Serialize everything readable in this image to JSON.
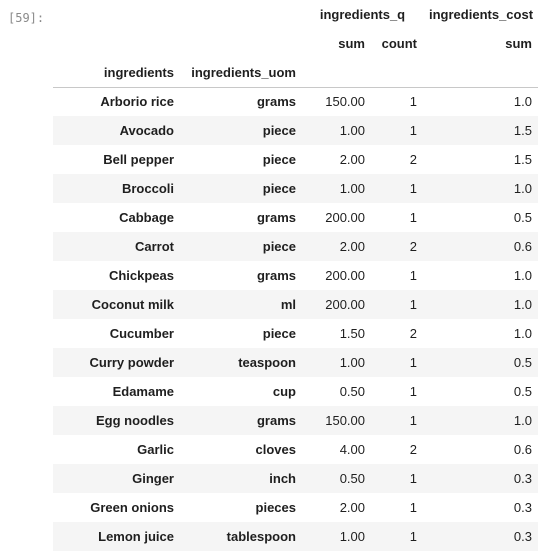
{
  "cell": {
    "prompt": "[59]:"
  },
  "table": {
    "index_names": [
      "ingredients",
      "ingredients_uom"
    ],
    "column_groups": {
      "quantity": "ingredients_q",
      "cost": "ingredients_cost"
    },
    "column_stats": {
      "quantity_sum": "sum",
      "quantity_count": "count",
      "cost_sum": "sum"
    },
    "rows": [
      {
        "ingredient": "Arborio rice",
        "uom": "grams",
        "q_sum": "150.00",
        "q_count": "1",
        "cost_sum": "1.0"
      },
      {
        "ingredient": "Avocado",
        "uom": "piece",
        "q_sum": "1.00",
        "q_count": "1",
        "cost_sum": "1.5"
      },
      {
        "ingredient": "Bell pepper",
        "uom": "piece",
        "q_sum": "2.00",
        "q_count": "2",
        "cost_sum": "1.5"
      },
      {
        "ingredient": "Broccoli",
        "uom": "piece",
        "q_sum": "1.00",
        "q_count": "1",
        "cost_sum": "1.0"
      },
      {
        "ingredient": "Cabbage",
        "uom": "grams",
        "q_sum": "200.00",
        "q_count": "1",
        "cost_sum": "0.5"
      },
      {
        "ingredient": "Carrot",
        "uom": "piece",
        "q_sum": "2.00",
        "q_count": "2",
        "cost_sum": "0.6"
      },
      {
        "ingredient": "Chickpeas",
        "uom": "grams",
        "q_sum": "200.00",
        "q_count": "1",
        "cost_sum": "1.0"
      },
      {
        "ingredient": "Coconut milk",
        "uom": "ml",
        "q_sum": "200.00",
        "q_count": "1",
        "cost_sum": "1.0"
      },
      {
        "ingredient": "Cucumber",
        "uom": "piece",
        "q_sum": "1.50",
        "q_count": "2",
        "cost_sum": "1.0"
      },
      {
        "ingredient": "Curry powder",
        "uom": "teaspoon",
        "q_sum": "1.00",
        "q_count": "1",
        "cost_sum": "0.5"
      },
      {
        "ingredient": "Edamame",
        "uom": "cup",
        "q_sum": "0.50",
        "q_count": "1",
        "cost_sum": "0.5"
      },
      {
        "ingredient": "Egg noodles",
        "uom": "grams",
        "q_sum": "150.00",
        "q_count": "1",
        "cost_sum": "1.0"
      },
      {
        "ingredient": "Garlic",
        "uom": "cloves",
        "q_sum": "4.00",
        "q_count": "2",
        "cost_sum": "0.6"
      },
      {
        "ingredient": "Ginger",
        "uom": "inch",
        "q_sum": "0.50",
        "q_count": "1",
        "cost_sum": "0.3"
      },
      {
        "ingredient": "Green onions",
        "uom": "pieces",
        "q_sum": "2.00",
        "q_count": "1",
        "cost_sum": "0.3"
      },
      {
        "ingredient": "Lemon juice",
        "uom": "tablespoon",
        "q_sum": "1.00",
        "q_count": "1",
        "cost_sum": "0.3"
      }
    ]
  }
}
